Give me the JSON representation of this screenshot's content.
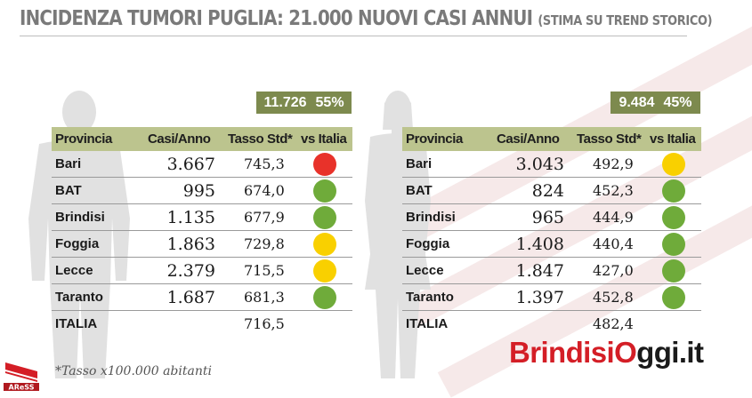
{
  "title": {
    "main": "INCIDENZA TUMORI PUGLIA: 21.000 NUOVI CASI ANNUI",
    "sub": "(STIMA SU TREND STORICO)"
  },
  "columns": [
    "Provincia",
    "Casi/Anno",
    "Tasso Std*",
    "vs Italia"
  ],
  "colors": {
    "red": "#e8322a",
    "yellow": "#f9d000",
    "green": "#6fab3a",
    "header": "#bcc48e",
    "totals": "#7d8a4e"
  },
  "male": {
    "total_cases": "11.726",
    "share": "55%",
    "rows": [
      {
        "provincia": "Bari",
        "casi": "3.667",
        "tasso": "745,3",
        "status": "red"
      },
      {
        "provincia": "BAT",
        "casi": "995",
        "tasso": "674,0",
        "status": "green"
      },
      {
        "provincia": "Brindisi",
        "casi": "1.135",
        "tasso": "677,9",
        "status": "green"
      },
      {
        "provincia": "Foggia",
        "casi": "1.863",
        "tasso": "729,8",
        "status": "yellow"
      },
      {
        "provincia": "Lecce",
        "casi": "2.379",
        "tasso": "715,5",
        "status": "yellow"
      },
      {
        "provincia": "Taranto",
        "casi": "1.687",
        "tasso": "681,3",
        "status": "green"
      }
    ],
    "italia": {
      "provincia": "ITALIA",
      "tasso": "716,5"
    }
  },
  "female": {
    "total_cases": "9.484",
    "share": "45%",
    "rows": [
      {
        "provincia": "Bari",
        "casi": "3.043",
        "tasso": "492,9",
        "status": "yellow"
      },
      {
        "provincia": "BAT",
        "casi": "824",
        "tasso": "452,3",
        "status": "green"
      },
      {
        "provincia": "Brindisi",
        "casi": "965",
        "tasso": "444,9",
        "status": "green"
      },
      {
        "provincia": "Foggia",
        "casi": "1.408",
        "tasso": "440,4",
        "status": "green"
      },
      {
        "provincia": "Lecce",
        "casi": "1.847",
        "tasso": "427,0",
        "status": "green"
      },
      {
        "provincia": "Taranto",
        "casi": "1.397",
        "tasso": "452,8",
        "status": "green"
      }
    ],
    "italia": {
      "provincia": "ITALIA",
      "tasso": "482,4"
    }
  },
  "footnote": "*Tasso x100.000 abitanti",
  "logo_ares": "AReSS",
  "brand": {
    "part1": "Brindisi",
    "part2": "O",
    "part3": "ggi.it"
  }
}
